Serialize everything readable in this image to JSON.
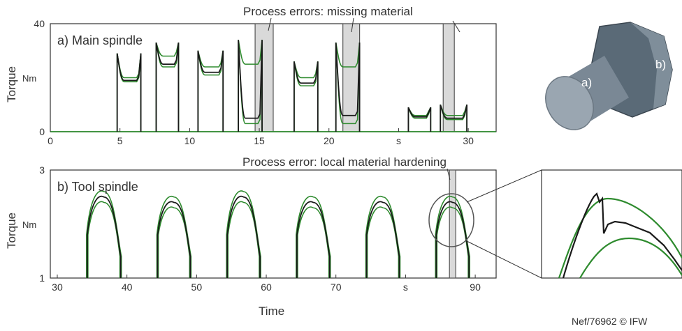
{
  "annotations": {
    "main_errors": "Process errors: missing material",
    "tool_error": "Process error: local material hardening"
  },
  "part_labels": {
    "a": "a)",
    "b": "b)"
  },
  "footer": {
    "credit": "Nef/76962 © IFW"
  },
  "colors": {
    "envelope": "#2e8b2e",
    "signal": "#1a1a1a",
    "error_band": "#d9d9d9"
  },
  "chart_data": [
    {
      "type": "line",
      "id": "main-spindle",
      "title": "a) Main spindle",
      "ylabel": "Torque",
      "yunit": "Nm",
      "xunit": "s",
      "xlim": [
        0,
        32
      ],
      "ylim": [
        0,
        40
      ],
      "xticks": [
        "0",
        "5",
        "10",
        "15",
        "20",
        "s",
        "30"
      ],
      "xtick_values": [
        0,
        5,
        10,
        15,
        20,
        25,
        30
      ],
      "yticks": [
        "0",
        "40"
      ],
      "ytick_values": [
        0,
        40
      ],
      "cycles": [
        {
          "start": 4.8,
          "end": 6.5,
          "peak": 29,
          "plateau": 19,
          "upper": 20,
          "lower": 18.5
        },
        {
          "start": 7.6,
          "end": 9.2,
          "peak": 33,
          "plateau": 25,
          "upper": 28,
          "lower": 24
        },
        {
          "start": 10.6,
          "end": 12.4,
          "peak": 30,
          "plateau": 22,
          "upper": 24,
          "lower": 21
        },
        {
          "start": 13.5,
          "end": 15.2,
          "peak": 34,
          "plateau": 5,
          "upper": 25,
          "lower": 3
        },
        {
          "start": 17.5,
          "end": 19.2,
          "peak": 26,
          "plateau": 18,
          "upper": 20,
          "lower": 17
        },
        {
          "start": 20.5,
          "end": 22.2,
          "peak": 33,
          "plateau": 6,
          "upper": 24,
          "lower": 3
        },
        {
          "start": 25.7,
          "end": 27.3,
          "peak": 9,
          "plateau": 5.5,
          "upper": 6,
          "lower": 5
        },
        {
          "start": 28.0,
          "end": 29.9,
          "peak": 10,
          "plateau": 5,
          "upper": 6,
          "lower": 4.5
        }
      ],
      "error_bands": [
        [
          14.7,
          16.0
        ],
        [
          21.0,
          22.2
        ],
        [
          28.2,
          29.0
        ]
      ]
    },
    {
      "type": "line",
      "id": "tool-spindle",
      "title": "b) Tool spindle",
      "ylabel": "Torque",
      "yunit": "Nm",
      "xlabel": "Time",
      "xunit": "s",
      "xlim": [
        29,
        93
      ],
      "ylim": [
        1,
        3
      ],
      "xticks": [
        "30",
        "40",
        "50",
        "60",
        "70",
        "s",
        "90"
      ],
      "xtick_values": [
        30,
        40,
        50,
        60,
        70,
        80,
        90
      ],
      "yticks": [
        "1",
        "3"
      ],
      "ytick_values": [
        1,
        3
      ],
      "cycles": [
        {
          "start": 34.2,
          "end": 39.2,
          "mean_peak": 2.5,
          "upper_peak": 2.6,
          "lower_peak": 2.4
        },
        {
          "start": 44.3,
          "end": 49.2,
          "mean_peak": 2.4,
          "upper_peak": 2.5,
          "lower_peak": 2.3
        },
        {
          "start": 54.3,
          "end": 59.2,
          "mean_peak": 2.5,
          "upper_peak": 2.6,
          "lower_peak": 2.4
        },
        {
          "start": 64.3,
          "end": 69.2,
          "mean_peak": 2.4,
          "upper_peak": 2.5,
          "lower_peak": 2.3
        },
        {
          "start": 74.3,
          "end": 79.2,
          "mean_peak": 2.4,
          "upper_peak": 2.5,
          "lower_peak": 2.3
        },
        {
          "start": 84.3,
          "end": 89.2,
          "mean_peak": 2.4,
          "upper_peak": 2.5,
          "lower_peak": 2.3,
          "anomaly_at": 86.7
        }
      ],
      "error_bands": [
        [
          86.3,
          87.2
        ]
      ]
    }
  ]
}
